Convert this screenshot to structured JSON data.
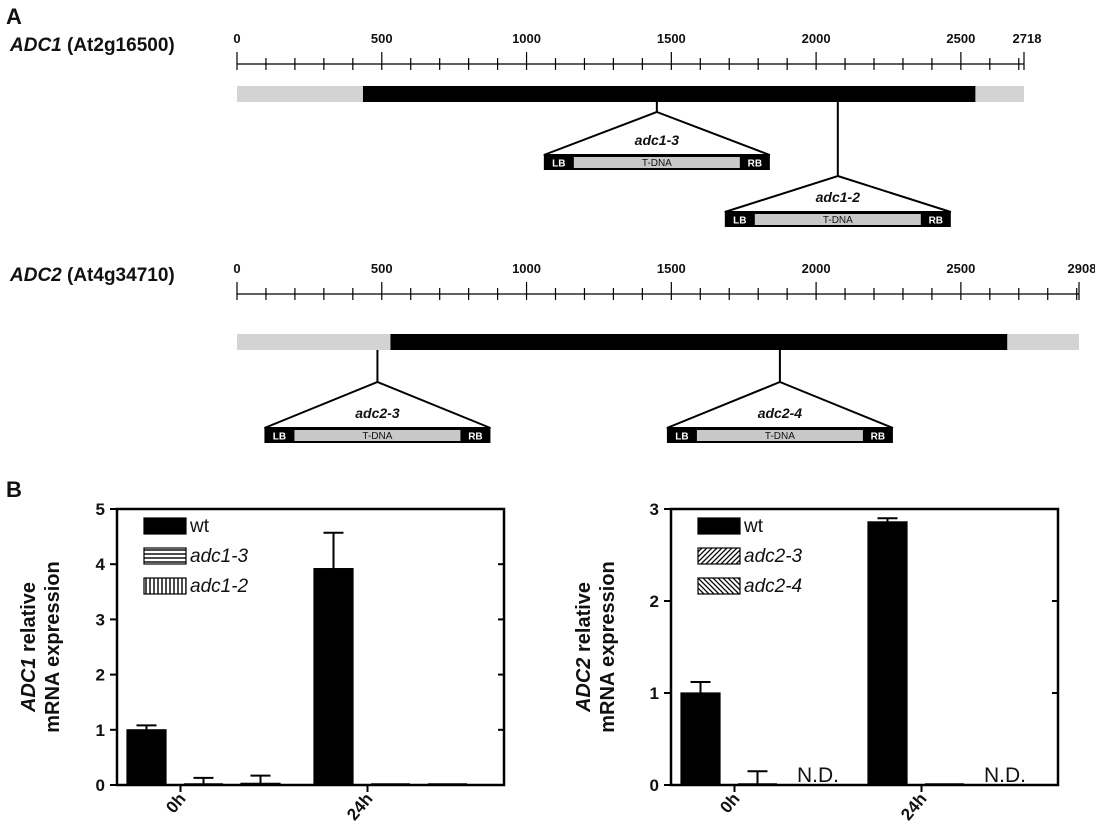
{
  "panel_a": {
    "label": "A",
    "genes": [
      {
        "name": "ADC1",
        "locus": "(At2g16500)",
        "length": 2718,
        "ticks": [
          0,
          500,
          1000,
          1500,
          2000,
          2500,
          2718
        ],
        "cds": [
          435,
          2550
        ],
        "insertions": [
          {
            "name": "adc1-3",
            "position": 1450,
            "lb": "LB",
            "body": "T-DNA",
            "rb": "RB"
          },
          {
            "name": "adc1-2",
            "position": 2075,
            "lb": "LB",
            "body": "T-DNA",
            "rb": "RB"
          }
        ]
      },
      {
        "name": "ADC2",
        "locus": "(At4g34710)",
        "length": 2908,
        "ticks": [
          0,
          500,
          1000,
          1500,
          2000,
          2500,
          2908
        ],
        "cds": [
          530,
          2660
        ],
        "insertions": [
          {
            "name": "adc2-3",
            "position": 485,
            "lb": "LB",
            "body": "T-DNA",
            "rb": "RB"
          },
          {
            "name": "adc2-4",
            "position": 1875,
            "lb": "LB",
            "body": "T-DNA",
            "rb": "RB"
          }
        ]
      }
    ]
  },
  "panel_b": {
    "label": "B"
  },
  "chart_data": [
    {
      "type": "bar",
      "ylabel_gene": "ADC1",
      "ylabel_rest": " relative",
      "ylabel_line2": "mRNA expression",
      "categories": [
        "0h",
        "24h"
      ],
      "ylim": [
        0,
        5
      ],
      "yticks": [
        0,
        1,
        2,
        3,
        4,
        5
      ],
      "series": [
        {
          "name": "wt",
          "values": [
            1.0,
            3.92
          ],
          "errors": [
            0.08,
            0.65
          ],
          "pattern": "solid"
        },
        {
          "name": "adc1-3",
          "values": [
            0.0,
            0.0
          ],
          "errors": [
            0.13,
            0.0
          ],
          "pattern": "hlines"
        },
        {
          "name": "adc1-2",
          "values": [
            0.03,
            0.0
          ],
          "errors": [
            0.14,
            0.0
          ],
          "pattern": "vlines"
        }
      ],
      "annotations": [],
      "legend": "top-left"
    },
    {
      "type": "bar",
      "ylabel_gene": "ADC2",
      "ylabel_rest": " relative",
      "ylabel_line2": "mRNA expression",
      "categories": [
        "0h",
        "24h"
      ],
      "ylim": [
        0,
        3
      ],
      "yticks": [
        0,
        1,
        2,
        3
      ],
      "series": [
        {
          "name": "wt",
          "values": [
            1.0,
            2.86
          ],
          "errors": [
            0.12,
            0.04
          ],
          "pattern": "solid"
        },
        {
          "name": "adc2-3",
          "values": [
            0.0,
            0.0
          ],
          "errors": [
            0.15,
            0.0
          ],
          "pattern": "diag"
        },
        {
          "name": "adc2-4",
          "values": [
            null,
            null
          ],
          "errors": [
            0,
            0
          ],
          "pattern": "antidiag"
        }
      ],
      "annotations": [
        {
          "category": "0h",
          "text": "N.D."
        },
        {
          "category": "24h",
          "text": "N.D."
        }
      ],
      "legend": "top-left"
    }
  ]
}
